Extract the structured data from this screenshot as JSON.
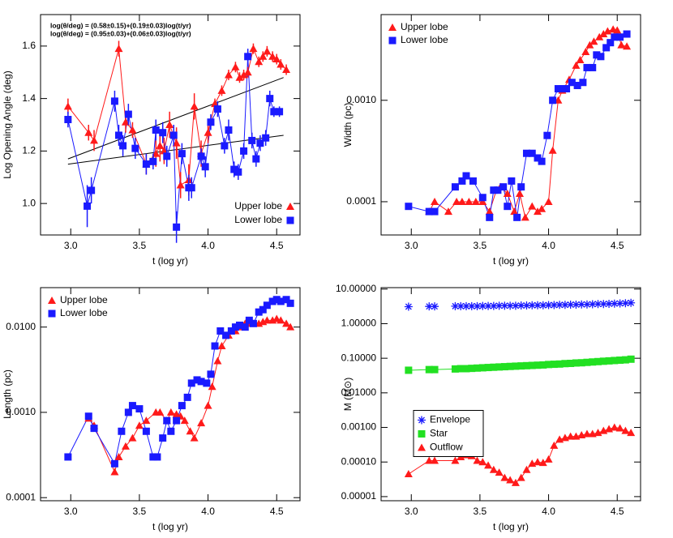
{
  "chart_data": [
    {
      "type": "line",
      "xlabel": "t (log yr)",
      "ylabel": "Log Opening Angle (deg)",
      "log_y": false,
      "xlim": [
        2.78,
        4.67
      ],
      "ylim": [
        0.88,
        1.72
      ],
      "xticks": [
        {
          "value": 3,
          "label": "3.0"
        },
        3.5,
        {
          "value": 4,
          "label": "4.0"
        },
        4.5
      ],
      "yticks": [
        {
          "value": 1,
          "label": "1.0"
        },
        1.2,
        1.4,
        1.6
      ],
      "legend": "lower right",
      "annotations": [
        "log(θ/deg) = (0.58±0.15)+(0.19±0.03)log(t/yr)",
        "log(θ/deg) = (0.95±0.03)+(0.06±0.03)log(t/yr)"
      ],
      "fits": [
        {
          "color": "#000000",
          "x": [
            2.98,
            4.55
          ],
          "values": [
            1.17,
            1.48
          ]
        },
        {
          "color": "#000000",
          "x": [
            2.98,
            4.55
          ],
          "values": [
            1.15,
            1.26
          ]
        }
      ],
      "series": [
        {
          "name": "Upper lobe",
          "color": "#ff1a1a",
          "marker": "triangle",
          "line": true,
          "x": [
            2.98,
            3.13,
            3.17,
            3.35,
            3.4,
            3.45,
            3.55,
            3.62,
            3.65,
            3.68,
            3.72,
            3.77,
            3.8,
            3.86,
            3.9,
            3.95,
            4.0,
            4.05,
            4.1,
            4.15,
            4.2,
            4.23,
            4.26,
            4.29,
            4.33,
            4.37,
            4.4,
            4.43,
            4.47,
            4.5,
            4.53,
            4.57
          ],
          "values": [
            1.37,
            1.27,
            1.24,
            1.59,
            1.31,
            1.28,
            1.15,
            1.19,
            1.22,
            1.2,
            1.3,
            1.23,
            1.07,
            1.09,
            1.37,
            1.19,
            1.27,
            1.38,
            1.43,
            1.49,
            1.52,
            1.48,
            1.49,
            1.5,
            1.59,
            1.54,
            1.56,
            1.58,
            1.56,
            1.55,
            1.53,
            1.51
          ],
          "errors": [
            0.03,
            0.03,
            0.04,
            0.03,
            0.04,
            0.03,
            0.04,
            0.05,
            0.06,
            0.05,
            0.05,
            0.06,
            0.05,
            0.06,
            0.05,
            0.05,
            0.04,
            0.02,
            0.02,
            0.02,
            0.02,
            0.02,
            0.02,
            0.02,
            0.02,
            0.02,
            0.02,
            0.02,
            0.02,
            0.02,
            0.02,
            0.02
          ]
        },
        {
          "name": "Lower lobe",
          "color": "#1a1aff",
          "marker": "square",
          "line": true,
          "x": [
            2.98,
            3.12,
            3.15,
            3.32,
            3.35,
            3.38,
            3.42,
            3.47,
            3.55,
            3.6,
            3.62,
            3.67,
            3.7,
            3.75,
            3.77,
            3.81,
            3.86,
            3.88,
            3.95,
            3.98,
            4.02,
            4.07,
            4.12,
            4.15,
            4.19,
            4.22,
            4.26,
            4.29,
            4.32,
            4.35,
            4.38,
            4.42,
            4.45,
            4.48,
            4.52
          ],
          "values": [
            1.32,
            0.99,
            1.05,
            1.39,
            1.26,
            1.22,
            1.34,
            1.21,
            1.15,
            1.16,
            1.28,
            1.27,
            1.18,
            1.26,
            0.91,
            1.19,
            1.06,
            1.06,
            1.18,
            1.14,
            1.31,
            1.36,
            1.22,
            1.28,
            1.13,
            1.12,
            1.2,
            1.56,
            1.24,
            1.17,
            1.23,
            1.25,
            1.4,
            1.35,
            1.35
          ],
          "errors": [
            0.03,
            0.08,
            0.05,
            0.04,
            0.04,
            0.04,
            0.04,
            0.04,
            0.04,
            0.03,
            0.04,
            0.04,
            0.04,
            0.04,
            0.06,
            0.04,
            0.05,
            0.04,
            0.03,
            0.04,
            0.03,
            0.03,
            0.03,
            0.04,
            0.03,
            0.03,
            0.03,
            0.03,
            0.03,
            0.03,
            0.03,
            0.03,
            0.03,
            0.02,
            0.02
          ]
        }
      ]
    },
    {
      "type": "line",
      "xlabel": "t (log yr)",
      "ylabel": "Width (pc)",
      "log_y": true,
      "xlim": [
        2.78,
        4.67
      ],
      "ylim": [
        4.7e-05,
        0.007
      ],
      "xticks": [
        {
          "value": 3,
          "label": "3.0"
        },
        3.5,
        {
          "value": 4,
          "label": "4.0"
        },
        4.5
      ],
      "yticks": [
        0.0001,
        {
          "value": 0.001,
          "label": "0.0010"
        }
      ],
      "legend": "upper left",
      "series": [
        {
          "name": "Upper lobe",
          "color": "#ff1a1a",
          "marker": "triangle",
          "line": true,
          "x": [
            3.13,
            3.17,
            3.27,
            3.33,
            3.37,
            3.42,
            3.47,
            3.52,
            3.57,
            3.62,
            3.65,
            3.7,
            3.75,
            3.79,
            3.83,
            3.88,
            3.92,
            3.95,
            4.0,
            4.03,
            4.07,
            4.1,
            4.15,
            4.2,
            4.23,
            4.27,
            4.3,
            4.33,
            4.37,
            4.4,
            4.43,
            4.47,
            4.5,
            4.53,
            4.57
          ],
          "values": [
            8e-05,
            0.0001,
            8e-05,
            0.0001,
            0.0001,
            0.0001,
            0.0001,
            0.0001,
            8e-05,
            0.00013,
            0.00014,
            0.00012,
            8e-05,
            0.00012,
            7e-05,
            9e-05,
            8e-05,
            8.5e-05,
            0.0001,
            0.00032,
            0.001,
            0.00125,
            0.0016,
            0.0022,
            0.0025,
            0.003,
            0.0035,
            0.0038,
            0.0042,
            0.0045,
            0.0048,
            0.005,
            0.0049,
            0.0035,
            0.0034
          ]
        },
        {
          "name": "Lower lobe",
          "color": "#1a1aff",
          "marker": "square",
          "line": true,
          "x": [
            2.98,
            3.13,
            3.17,
            3.32,
            3.37,
            3.4,
            3.45,
            3.52,
            3.57,
            3.6,
            3.63,
            3.67,
            3.7,
            3.73,
            3.77,
            3.8,
            3.84,
            3.88,
            3.92,
            3.95,
            3.99,
            4.03,
            4.07,
            4.1,
            4.13,
            4.17,
            4.21,
            4.25,
            4.28,
            4.32,
            4.35,
            4.38,
            4.42,
            4.45,
            4.48,
            4.52,
            4.57
          ],
          "values": [
            9e-05,
            8e-05,
            8e-05,
            0.00014,
            0.00016,
            0.00018,
            0.00016,
            0.00011,
            7e-05,
            0.00013,
            0.00013,
            0.00014,
            9e-05,
            0.00016,
            7e-05,
            0.00014,
            0.0003,
            0.0003,
            0.00027,
            0.00025,
            0.00045,
            0.001,
            0.0013,
            0.0013,
            0.0013,
            0.0015,
            0.0014,
            0.0015,
            0.0021,
            0.0021,
            0.0028,
            0.0027,
            0.0033,
            0.0037,
            0.0042,
            0.0042,
            0.0045
          ]
        }
      ]
    },
    {
      "type": "line",
      "xlabel": "t (log yr)",
      "ylabel": "Length (pc)",
      "log_y": true,
      "xlim": [
        2.78,
        4.67
      ],
      "ylim": [
        9.2e-05,
        0.029
      ],
      "xticks": [
        {
          "value": 3,
          "label": "3.0"
        },
        3.5,
        {
          "value": 4,
          "label": "4.0"
        },
        4.5
      ],
      "yticks": [
        0.0001,
        {
          "value": 0.001,
          "label": "0.0010"
        },
        {
          "value": 0.01,
          "label": "0.0100"
        }
      ],
      "legend": "upper left",
      "series": [
        {
          "name": "Upper lobe",
          "color": "#ff1a1a",
          "marker": "triangle",
          "line": true,
          "x": [
            3.13,
            3.17,
            3.32,
            3.35,
            3.4,
            3.45,
            3.5,
            3.55,
            3.62,
            3.65,
            3.7,
            3.73,
            3.77,
            3.8,
            3.83,
            3.87,
            3.9,
            3.95,
            4.0,
            4.03,
            4.07,
            4.1,
            4.15,
            4.2,
            4.23,
            4.27,
            4.3,
            4.33,
            4.37,
            4.4,
            4.43,
            4.47,
            4.5,
            4.53,
            4.57,
            4.6
          ],
          "values": [
            0.00085,
            0.0007,
            0.0002,
            0.0003,
            0.0004,
            0.0005,
            0.0007,
            0.0008,
            0.001,
            0.001,
            0.0008,
            0.001,
            0.00095,
            0.0009,
            0.0008,
            0.0006,
            0.0005,
            0.00075,
            0.0012,
            0.002,
            0.004,
            0.006,
            0.008,
            0.009,
            0.01,
            0.011,
            0.011,
            0.011,
            0.011,
            0.0115,
            0.012,
            0.012,
            0.0125,
            0.012,
            0.011,
            0.01
          ]
        },
        {
          "name": "Lower lobe",
          "color": "#1a1aff",
          "marker": "square",
          "line": true,
          "x": [
            2.98,
            3.13,
            3.17,
            3.32,
            3.37,
            3.42,
            3.45,
            3.5,
            3.55,
            3.6,
            3.63,
            3.67,
            3.7,
            3.73,
            3.77,
            3.81,
            3.85,
            3.88,
            3.92,
            3.95,
            3.99,
            4.02,
            4.05,
            4.09,
            4.13,
            4.17,
            4.2,
            4.23,
            4.27,
            4.3,
            4.33,
            4.37,
            4.4,
            4.43,
            4.47,
            4.5,
            4.53,
            4.57,
            4.6
          ],
          "values": [
            0.0003,
            0.0009,
            0.00065,
            0.00025,
            0.0006,
            0.001,
            0.0012,
            0.0011,
            0.0006,
            0.0003,
            0.0003,
            0.0005,
            0.0008,
            0.0006,
            0.0008,
            0.0012,
            0.0015,
            0.0022,
            0.0024,
            0.0023,
            0.0022,
            0.0028,
            0.006,
            0.009,
            0.008,
            0.009,
            0.01,
            0.0105,
            0.01,
            0.012,
            0.011,
            0.015,
            0.016,
            0.018,
            0.02,
            0.021,
            0.02,
            0.021,
            0.019
          ]
        }
      ]
    },
    {
      "type": "line",
      "xlabel": "t (log yr)",
      "ylabel": "M (M⊙)",
      "log_y": true,
      "xlim": [
        2.78,
        4.67
      ],
      "ylim": [
        7.6e-06,
        11
      ],
      "xticks": [
        {
          "value": 3,
          "label": "3.0"
        },
        3.5,
        {
          "value": 4,
          "label": "4.0"
        },
        4.5
      ],
      "yticks": [
        1e-05,
        {
          "value": 0.0001,
          "label": "0.00010"
        },
        {
          "value": 0.001,
          "label": "0.00100"
        },
        {
          "value": 0.01,
          "label": "0.01000"
        },
        {
          "value": 0.1,
          "label": "0.10000"
        },
        {
          "value": 1,
          "label": "1.00000"
        },
        {
          "value": 10,
          "label": "10.00000"
        }
      ],
      "legend": "center left",
      "x": [
        2.98,
        3.13,
        3.17,
        3.32,
        3.36,
        3.4,
        3.44,
        3.48,
        3.52,
        3.56,
        3.6,
        3.64,
        3.68,
        3.72,
        3.76,
        3.8,
        3.84,
        3.88,
        3.92,
        3.96,
        4.0,
        4.04,
        4.08,
        4.12,
        4.16,
        4.2,
        4.24,
        4.28,
        4.32,
        4.36,
        4.4,
        4.44,
        4.48,
        4.52,
        4.56,
        4.6
      ],
      "series": [
        {
          "name": "Envelope",
          "color": "#1a1aff",
          "marker": "asterisk",
          "line": false,
          "values": [
            3.1,
            3.15,
            3.15,
            3.2,
            3.2,
            3.2,
            3.2,
            3.2,
            3.25,
            3.25,
            3.25,
            3.3,
            3.3,
            3.3,
            3.3,
            3.35,
            3.35,
            3.4,
            3.4,
            3.4,
            3.45,
            3.45,
            3.5,
            3.5,
            3.55,
            3.55,
            3.6,
            3.6,
            3.65,
            3.7,
            3.7,
            3.75,
            3.8,
            3.85,
            3.9,
            4.0
          ]
        },
        {
          "name": "Star",
          "color": "#22e022",
          "marker": "square",
          "line": true,
          "values": [
            0.045,
            0.047,
            0.047,
            0.049,
            0.05,
            0.05,
            0.051,
            0.052,
            0.053,
            0.054,
            0.055,
            0.056,
            0.057,
            0.058,
            0.059,
            0.06,
            0.061,
            0.062,
            0.063,
            0.064,
            0.066,
            0.067,
            0.068,
            0.07,
            0.071,
            0.073,
            0.074,
            0.076,
            0.078,
            0.08,
            0.082,
            0.084,
            0.086,
            0.088,
            0.09,
            0.094
          ]
        },
        {
          "name": "Outflow",
          "color": "#ff1a1a",
          "marker": "triangle",
          "line": true,
          "values": [
            4.5e-05,
            0.00011,
            0.00011,
            0.00011,
            0.00014,
            0.00016,
            0.00015,
            0.00011,
            0.0001,
            8e-05,
            6e-05,
            5e-05,
            3.5e-05,
            3e-05,
            2.5e-05,
            3.5e-05,
            6e-05,
            9e-05,
            0.0001,
            9.5e-05,
            0.00012,
            0.0003,
            0.00045,
            0.0005,
            0.00055,
            0.00055,
            0.0006,
            0.00065,
            0.00065,
            0.0007,
            0.0008,
            0.0009,
            0.001,
            0.00095,
            0.0008,
            0.0007
          ]
        }
      ]
    }
  ]
}
